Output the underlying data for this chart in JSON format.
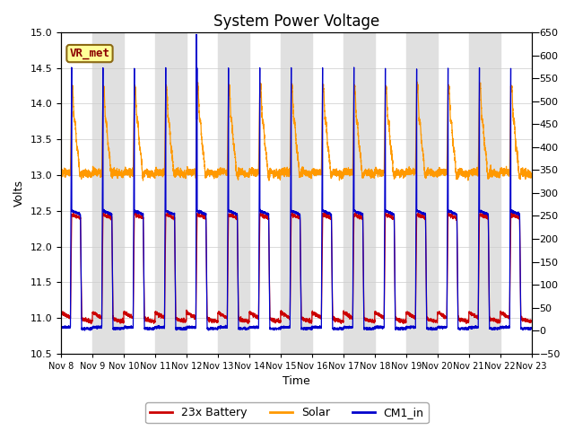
{
  "title": "System Power Voltage",
  "xlabel": "Time",
  "ylabel_left": "Volts",
  "ylim_left": [
    10.5,
    15.0
  ],
  "ylim_right": [
    -50,
    650
  ],
  "yticks_left": [
    10.5,
    11.0,
    11.5,
    12.0,
    12.5,
    13.0,
    13.5,
    14.0,
    14.5,
    15.0
  ],
  "yticks_right": [
    -50,
    0,
    50,
    100,
    150,
    200,
    250,
    300,
    350,
    400,
    450,
    500,
    550,
    600,
    650
  ],
  "n_days": 15,
  "background_color": "#ffffff",
  "band_color": "#e0e0e0",
  "line_colors": {
    "battery": "#cc0000",
    "solar": "#ff9900",
    "cm1": "#0000cc"
  },
  "legend_labels": [
    "23x Battery",
    "Solar",
    "CM1_in"
  ],
  "vr_met_box_color": "#ffff99",
  "vr_met_text_color": "#8b0000",
  "vr_met_border_color": "#8b6914",
  "title_fontsize": 12,
  "axis_fontsize": 9,
  "tick_fontsize": 8,
  "legend_fontsize": 9
}
